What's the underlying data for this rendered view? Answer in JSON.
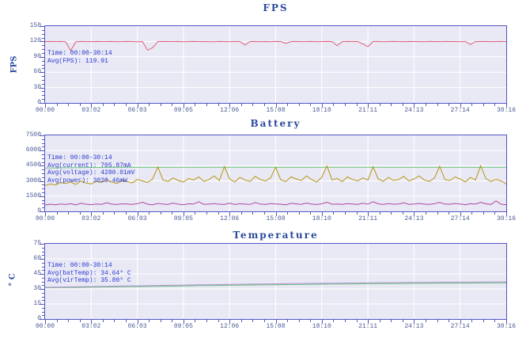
{
  "page": {
    "background": "#ffffff"
  },
  "ui_colors": {
    "plot_background": "#e9e9f6",
    "axis_frame": "#5456c4",
    "grid_line": "#ffffff",
    "title_text": "#2b4a9e",
    "tick_text": "#4a5a92",
    "annotation_text": "#2936cc"
  },
  "chart_data": [
    {
      "type": "line",
      "title": "FPS",
      "ylabel": "FPS",
      "xlabel": "",
      "ylim": [
        0,
        150
      ],
      "yticks": [
        0,
        30,
        60,
        90,
        120,
        150
      ],
      "grid": true,
      "legend": "none",
      "x_categories": [
        "00:00",
        "03:02",
        "06:03",
        "09:05",
        "12:06",
        "15:08",
        "18:10",
        "21:11",
        "24:13",
        "27:14",
        "30:16"
      ],
      "annotation": [
        "Time: 00:00-30:14",
        "Avg(FPS): 119.91"
      ],
      "series": [
        {
          "name": "FPS",
          "color": "#e2607b",
          "avg": 119.91,
          "values": [
            119.9,
            120,
            119.8,
            120,
            119.6,
            102,
            119.5,
            120,
            119.9,
            119.7,
            120,
            119.8,
            119.9,
            120,
            119.6,
            119.9,
            120,
            119.8,
            119.5,
            119.9,
            103,
            108,
            119.7,
            120,
            119.9,
            119.8,
            120,
            119.6,
            119.9,
            120,
            119.8,
            119.9,
            119.5,
            119.7,
            120,
            119.9,
            119.6,
            120,
            119.8,
            113,
            119.9,
            120,
            119.7,
            119.9,
            119.5,
            120,
            119.8,
            116,
            119.9,
            120,
            119.7,
            119.9,
            120,
            119.6,
            119.8,
            120,
            119.9,
            112,
            119.7,
            120,
            119.9,
            119.8,
            115,
            110,
            119.9,
            120,
            119.6,
            119.8,
            120,
            119.9,
            119.7,
            120,
            119.8,
            119.9,
            119.5,
            120,
            119.9,
            119.7,
            120,
            119.8,
            119.9,
            119.6,
            120,
            114,
            119.8,
            119.9,
            120,
            119.7,
            119.9,
            120,
            119.8
          ]
        }
      ]
    },
    {
      "type": "line",
      "title": "Battery",
      "ylabel": "",
      "xlabel": "",
      "ylim": [
        0,
        7500
      ],
      "yticks": [
        0,
        1500,
        3000,
        4500,
        6000,
        7500
      ],
      "grid": true,
      "legend": "none",
      "x_categories": [
        "00:00",
        "03:02",
        "06:03",
        "09:05",
        "12:06",
        "15:08",
        "18:10",
        "21:11",
        "24:13",
        "27:14",
        "30:16"
      ],
      "annotation": [
        "Time: 00:00-30:14",
        "Avg(current): 705.87mA",
        "Avg(voltage): 4280.01mV",
        "Avg(power): 3020.46mW"
      ],
      "series": [
        {
          "name": "voltage",
          "color": "#6ec878",
          "avg_label": "4280.01mV",
          "values": [
            4270,
            4330,
            4340,
            4345,
            4340,
            4350,
            4345,
            4340,
            4350,
            4345,
            4340,
            4345,
            4340
          ]
        },
        {
          "name": "power",
          "color": "#b5950f",
          "avg_label": "3020.46mW",
          "values": [
            2550,
            2700,
            2600,
            2850,
            2750,
            2900,
            2650,
            3000,
            2800,
            2700,
            2950,
            2850,
            3100,
            2900,
            2750,
            3050,
            2950,
            2800,
            3150,
            3000,
            2850,
            3200,
            4380,
            3100,
            2950,
            3300,
            3050,
            2900,
            3250,
            3100,
            3400,
            2950,
            3150,
            3500,
            3050,
            4420,
            3200,
            2900,
            3350,
            3100,
            2950,
            3450,
            3150,
            3000,
            3300,
            4350,
            3100,
            2950,
            3400,
            3200,
            3050,
            3500,
            3150,
            2900,
            3350,
            4480,
            3100,
            3250,
            2950,
            3400,
            3150,
            3000,
            3300,
            3100,
            4400,
            3200,
            2950,
            3350,
            3050,
            3150,
            3450,
            3000,
            3200,
            3500,
            3100,
            2950,
            3300,
            4450,
            3150,
            3050,
            3400,
            3200,
            2900,
            3350,
            3100,
            4500,
            3250,
            2950,
            3150,
            3000,
            2700
          ]
        },
        {
          "name": "current",
          "color": "#b0459e",
          "avg_label": "705.87mA",
          "values": [
            620,
            700,
            650,
            720,
            680,
            750,
            640,
            800,
            700,
            660,
            730,
            690,
            850,
            710,
            670,
            740,
            720,
            680,
            760,
            900,
            700,
            650,
            780,
            710,
            690,
            820,
            700,
            660,
            740,
            720,
            950,
            680,
            730,
            760,
            700,
            690,
            810,
            670,
            750,
            710,
            680,
            870,
            720,
            690,
            760,
            730,
            700,
            650,
            790,
            740,
            690,
            820,
            710,
            670,
            750,
            900,
            700,
            720,
            680,
            760,
            730,
            690,
            800,
            710,
            950,
            740,
            680,
            760,
            700,
            720,
            840,
            690,
            730,
            780,
            710,
            680,
            760,
            880,
            720,
            700,
            770,
            730,
            660,
            750,
            710,
            900,
            740,
            680,
            1020,
            700,
            650
          ]
        }
      ]
    },
    {
      "type": "line",
      "title": "Temperature",
      "ylabel": "° C",
      "xlabel": "",
      "ylim": [
        0,
        75
      ],
      "yticks": [
        0,
        15,
        30,
        45,
        60,
        75
      ],
      "grid": true,
      "legend": "none",
      "x_categories": [
        "00:00",
        "03:02",
        "06:03",
        "09:05",
        "12:06",
        "15:08",
        "18:10",
        "21:11",
        "24:13",
        "27:14",
        "30:16"
      ],
      "annotation": [
        "Time: 00:00-30:14",
        "Avg(batTemp): 34.64° C",
        "Avg(virTemp): 35.89° C"
      ],
      "series": [
        {
          "name": "batTemp",
          "color": "#62bd76",
          "avg_label": "34.64° C",
          "values": [
            31.2,
            31.4,
            31.5,
            31.8,
            32.0,
            32.1,
            32.4,
            32.6,
            32.8,
            33.0,
            33.3,
            33.5,
            33.6,
            33.9,
            34.0,
            34.2,
            34.4,
            34.5,
            34.7,
            34.9,
            35.0,
            35.2,
            35.3,
            35.4,
            35.5,
            35.6,
            35.7,
            35.8,
            35.9,
            36.0,
            36.0
          ]
        },
        {
          "name": "virTemp",
          "color": "#b993d4",
          "avg_label": "35.89° C",
          "values": [
            31.6,
            31.9,
            32.1,
            32.4,
            32.6,
            32.9,
            33.1,
            33.4,
            33.6,
            33.9,
            34.1,
            34.3,
            34.5,
            34.7,
            34.9,
            35.1,
            35.3,
            35.5,
            35.6,
            35.8,
            36.0,
            36.1,
            36.3,
            36.4,
            36.5,
            36.6,
            36.7,
            36.8,
            36.9,
            37.0,
            37.1
          ]
        }
      ]
    }
  ]
}
